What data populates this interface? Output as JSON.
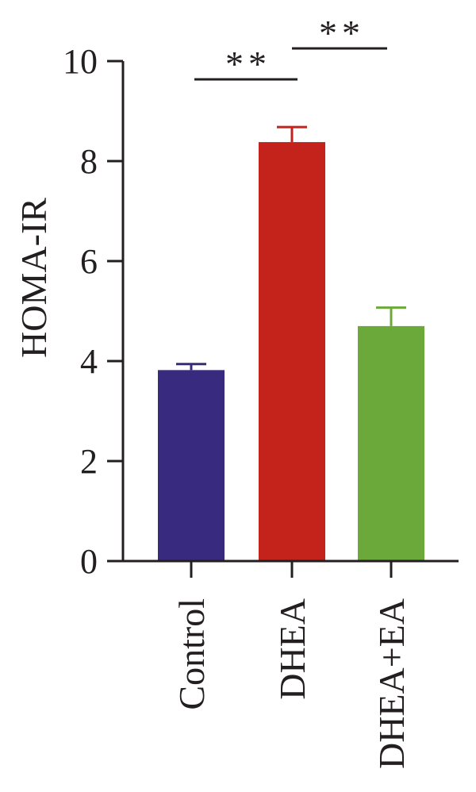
{
  "chart_data": {
    "type": "bar",
    "categories": [
      "Control",
      "DHEA",
      "DHEA+EA"
    ],
    "values": [
      3.82,
      8.38,
      4.7
    ],
    "errors": [
      0.12,
      0.3,
      0.37
    ],
    "colors": [
      "#382a7e",
      "#c4231b",
      "#6ca93b"
    ],
    "ylabel": "HOMA-IR",
    "ylim": [
      0,
      10
    ],
    "yticks": [
      "0",
      "2",
      "4",
      "6",
      "8",
      "10"
    ],
    "ytick_values": [
      0,
      2,
      4,
      6,
      8,
      10
    ],
    "grid": false,
    "significance": [
      {
        "from": "Control",
        "to": "DHEA",
        "label": "**"
      },
      {
        "from": "DHEA",
        "to": "DHEA+EA",
        "label": "**"
      }
    ]
  }
}
